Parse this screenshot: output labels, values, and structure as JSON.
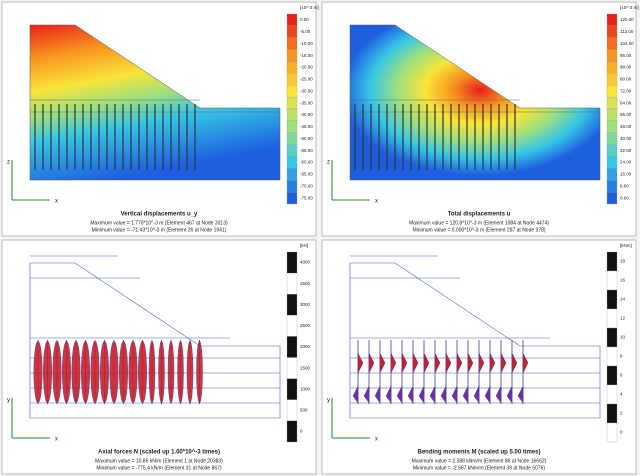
{
  "panels": [
    {
      "title": "Vertical displacements u_y",
      "unit": "[10^-3 m]",
      "axes": [
        "z",
        "x"
      ],
      "lines": [
        "Maximum value = 1.770*10^-3 m (Element 467 at Node 3313)",
        "Minimum value = -71.43*10^-3 m (Element 26 at Node 1941)"
      ],
      "scale": [
        "0.00",
        "-5.00",
        "-10.00",
        "-15.00",
        "-20.00",
        "-25.00",
        "-30.00",
        "-35.00",
        "-40.00",
        "-45.00",
        "-50.00",
        "-55.00",
        "-60.00",
        "-65.00",
        "-70.00",
        "-75.00"
      ]
    },
    {
      "title": "Total displacements u",
      "unit": "[10^-3 m]",
      "axes": [
        "z",
        "x"
      ],
      "lines": [
        "Maximum value = 120.8*10^-3 m (Element 1084 at Node 4474)",
        "Minimum value = 0.000*10^-3 m (Element 287 at Node 378)"
      ],
      "scale": [
        "120.00",
        "112.00",
        "104.00",
        "96.00",
        "88.00",
        "80.00",
        "72.00",
        "64.00",
        "56.00",
        "48.00",
        "40.00",
        "32.00",
        "24.00",
        "16.00",
        "8.00",
        "0.00"
      ]
    },
    {
      "title": "Axial forces N (scaled up 1.00*10^-3 times)",
      "unit": "[kN]",
      "axes": [
        "y",
        "x"
      ],
      "lines": [
        "Maximum value = 10.85 kN/m (Element 1 at Node 20383)",
        "Minimum value = -775.4 kN/m (Element 31 at Node 867)"
      ],
      "scale": [
        "4000",
        "3500",
        "3000",
        "2500",
        "2000",
        "1500",
        "1000",
        "500",
        "0"
      ]
    },
    {
      "title": "Bending moments M (scaled up 5.00 times)",
      "unit": "[kNm]",
      "axes": [
        "y",
        "x"
      ],
      "lines": [
        "Maximum value = 2.388 kNm/m (Element 86 at Node 16662)",
        "Minimum value = -2.567 kNm/m (Element 39 at Node 5076)"
      ],
      "scale": [
        "18",
        "16",
        "14",
        "12",
        "10",
        "8",
        "6",
        "4",
        "2",
        "0"
      ]
    }
  ]
}
